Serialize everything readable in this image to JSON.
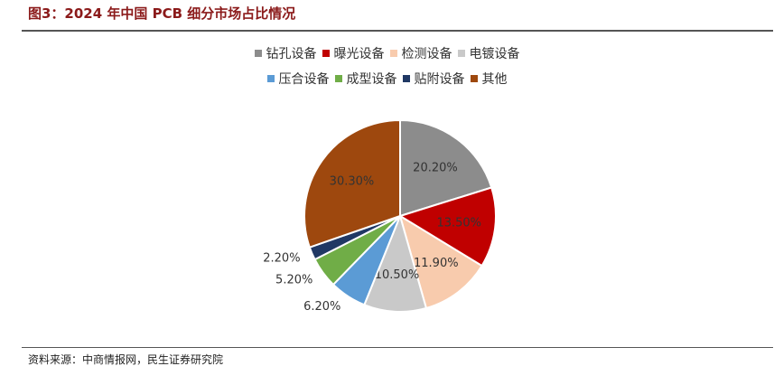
{
  "title": "图3：2024 年中国 PCB 细分市场占比情况",
  "source": "资料来源：中商情报网，民生证券研究院",
  "chart_data": {
    "type": "pie",
    "title": "",
    "legend_position": "top",
    "slices": [
      {
        "name": "钻孔设备",
        "value": 20.2,
        "label": "20.20%",
        "color": "#8c8c8c"
      },
      {
        "name": "曝光设备",
        "value": 13.5,
        "label": "13.50%",
        "color": "#c00000"
      },
      {
        "name": "检测设备",
        "value": 11.9,
        "label": "11.90%",
        "color": "#f8cbad"
      },
      {
        "name": "电镀设备",
        "value": 10.5,
        "label": "10.50%",
        "color": "#c9c9c9"
      },
      {
        "name": "压合设备",
        "value": 6.2,
        "label": "6.20%",
        "color": "#5b9bd5"
      },
      {
        "name": "成型设备",
        "value": 5.2,
        "label": "5.20%",
        "color": "#70ad47"
      },
      {
        "name": "贴附设备",
        "value": 2.2,
        "label": "2.20%",
        "color": "#203864"
      },
      {
        "name": "其他",
        "value": 30.3,
        "label": "30.30%",
        "color": "#9e480e"
      }
    ]
  }
}
